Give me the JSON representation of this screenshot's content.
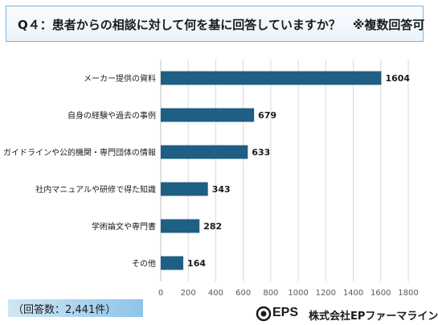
{
  "title": "Q４：患者からの相談に対して何を基に回答していますか？　※複数回答可",
  "chart_data": {
    "type": "bar",
    "orientation": "horizontal",
    "categories": [
      "メーカー提供の資料",
      "自身の経験や過去の事例",
      "ガイドラインや公的機関・専門団体の情報",
      "社内マニュアルや研修で得た知識",
      "学術論文や専門書",
      "その他"
    ],
    "values": [
      1604,
      679,
      633,
      343,
      282,
      164
    ],
    "xlim": [
      0,
      1800
    ],
    "xticks": [
      "0",
      "200",
      "400",
      "600",
      "800",
      "1000",
      "1200",
      "1400",
      "1600",
      "1800"
    ],
    "grid": true,
    "bar_color": "#1f5f83"
  },
  "respondents": "（回答数：2,441件）",
  "footer": {
    "logo": "EPS",
    "company": "株式会社EPファーマライン"
  }
}
